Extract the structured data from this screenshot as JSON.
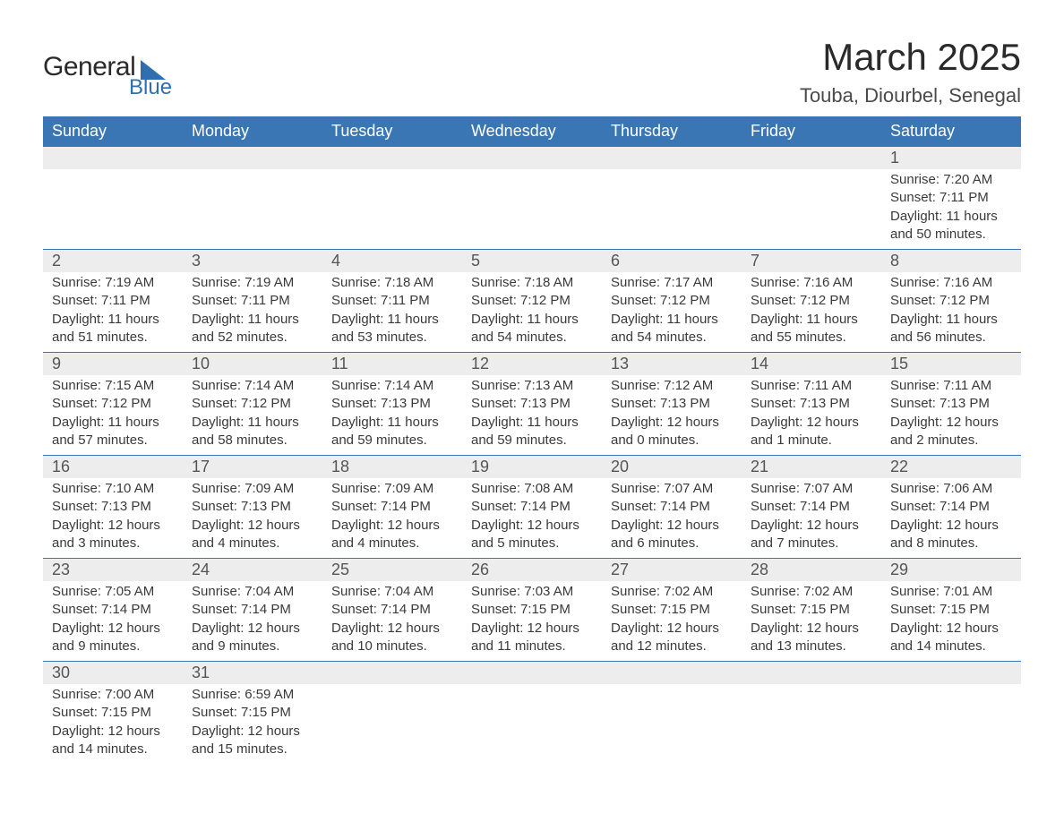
{
  "logo": {
    "top": "General",
    "bottom": "Blue"
  },
  "title": "March 2025",
  "location": "Touba, Diourbel, Senegal",
  "colors": {
    "header_bg": "#3a76b4",
    "header_text": "#ffffff",
    "daynum_bg": "#ededed",
    "row_divider": "#3a76b4",
    "text": "#3a3a3a",
    "logo_accent": "#2f6fb0"
  },
  "weekdays": [
    "Sunday",
    "Monday",
    "Tuesday",
    "Wednesday",
    "Thursday",
    "Friday",
    "Saturday"
  ],
  "weeks": [
    [
      null,
      null,
      null,
      null,
      null,
      null,
      {
        "d": "1",
        "sr": "Sunrise: 7:20 AM",
        "ss": "Sunset: 7:11 PM",
        "dl1": "Daylight: 11 hours",
        "dl2": "and 50 minutes."
      }
    ],
    [
      {
        "d": "2",
        "sr": "Sunrise: 7:19 AM",
        "ss": "Sunset: 7:11 PM",
        "dl1": "Daylight: 11 hours",
        "dl2": "and 51 minutes."
      },
      {
        "d": "3",
        "sr": "Sunrise: 7:19 AM",
        "ss": "Sunset: 7:11 PM",
        "dl1": "Daylight: 11 hours",
        "dl2": "and 52 minutes."
      },
      {
        "d": "4",
        "sr": "Sunrise: 7:18 AM",
        "ss": "Sunset: 7:11 PM",
        "dl1": "Daylight: 11 hours",
        "dl2": "and 53 minutes."
      },
      {
        "d": "5",
        "sr": "Sunrise: 7:18 AM",
        "ss": "Sunset: 7:12 PM",
        "dl1": "Daylight: 11 hours",
        "dl2": "and 54 minutes."
      },
      {
        "d": "6",
        "sr": "Sunrise: 7:17 AM",
        "ss": "Sunset: 7:12 PM",
        "dl1": "Daylight: 11 hours",
        "dl2": "and 54 minutes."
      },
      {
        "d": "7",
        "sr": "Sunrise: 7:16 AM",
        "ss": "Sunset: 7:12 PM",
        "dl1": "Daylight: 11 hours",
        "dl2": "and 55 minutes."
      },
      {
        "d": "8",
        "sr": "Sunrise: 7:16 AM",
        "ss": "Sunset: 7:12 PM",
        "dl1": "Daylight: 11 hours",
        "dl2": "and 56 minutes."
      }
    ],
    [
      {
        "d": "9",
        "sr": "Sunrise: 7:15 AM",
        "ss": "Sunset: 7:12 PM",
        "dl1": "Daylight: 11 hours",
        "dl2": "and 57 minutes."
      },
      {
        "d": "10",
        "sr": "Sunrise: 7:14 AM",
        "ss": "Sunset: 7:12 PM",
        "dl1": "Daylight: 11 hours",
        "dl2": "and 58 minutes."
      },
      {
        "d": "11",
        "sr": "Sunrise: 7:14 AM",
        "ss": "Sunset: 7:13 PM",
        "dl1": "Daylight: 11 hours",
        "dl2": "and 59 minutes."
      },
      {
        "d": "12",
        "sr": "Sunrise: 7:13 AM",
        "ss": "Sunset: 7:13 PM",
        "dl1": "Daylight: 11 hours",
        "dl2": "and 59 minutes."
      },
      {
        "d": "13",
        "sr": "Sunrise: 7:12 AM",
        "ss": "Sunset: 7:13 PM",
        "dl1": "Daylight: 12 hours",
        "dl2": "and 0 minutes."
      },
      {
        "d": "14",
        "sr": "Sunrise: 7:11 AM",
        "ss": "Sunset: 7:13 PM",
        "dl1": "Daylight: 12 hours",
        "dl2": "and 1 minute."
      },
      {
        "d": "15",
        "sr": "Sunrise: 7:11 AM",
        "ss": "Sunset: 7:13 PM",
        "dl1": "Daylight: 12 hours",
        "dl2": "and 2 minutes."
      }
    ],
    [
      {
        "d": "16",
        "sr": "Sunrise: 7:10 AM",
        "ss": "Sunset: 7:13 PM",
        "dl1": "Daylight: 12 hours",
        "dl2": "and 3 minutes."
      },
      {
        "d": "17",
        "sr": "Sunrise: 7:09 AM",
        "ss": "Sunset: 7:13 PM",
        "dl1": "Daylight: 12 hours",
        "dl2": "and 4 minutes."
      },
      {
        "d": "18",
        "sr": "Sunrise: 7:09 AM",
        "ss": "Sunset: 7:14 PM",
        "dl1": "Daylight: 12 hours",
        "dl2": "and 4 minutes."
      },
      {
        "d": "19",
        "sr": "Sunrise: 7:08 AM",
        "ss": "Sunset: 7:14 PM",
        "dl1": "Daylight: 12 hours",
        "dl2": "and 5 minutes."
      },
      {
        "d": "20",
        "sr": "Sunrise: 7:07 AM",
        "ss": "Sunset: 7:14 PM",
        "dl1": "Daylight: 12 hours",
        "dl2": "and 6 minutes."
      },
      {
        "d": "21",
        "sr": "Sunrise: 7:07 AM",
        "ss": "Sunset: 7:14 PM",
        "dl1": "Daylight: 12 hours",
        "dl2": "and 7 minutes."
      },
      {
        "d": "22",
        "sr": "Sunrise: 7:06 AM",
        "ss": "Sunset: 7:14 PM",
        "dl1": "Daylight: 12 hours",
        "dl2": "and 8 minutes."
      }
    ],
    [
      {
        "d": "23",
        "sr": "Sunrise: 7:05 AM",
        "ss": "Sunset: 7:14 PM",
        "dl1": "Daylight: 12 hours",
        "dl2": "and 9 minutes."
      },
      {
        "d": "24",
        "sr": "Sunrise: 7:04 AM",
        "ss": "Sunset: 7:14 PM",
        "dl1": "Daylight: 12 hours",
        "dl2": "and 9 minutes."
      },
      {
        "d": "25",
        "sr": "Sunrise: 7:04 AM",
        "ss": "Sunset: 7:14 PM",
        "dl1": "Daylight: 12 hours",
        "dl2": "and 10 minutes."
      },
      {
        "d": "26",
        "sr": "Sunrise: 7:03 AM",
        "ss": "Sunset: 7:15 PM",
        "dl1": "Daylight: 12 hours",
        "dl2": "and 11 minutes."
      },
      {
        "d": "27",
        "sr": "Sunrise: 7:02 AM",
        "ss": "Sunset: 7:15 PM",
        "dl1": "Daylight: 12 hours",
        "dl2": "and 12 minutes."
      },
      {
        "d": "28",
        "sr": "Sunrise: 7:02 AM",
        "ss": "Sunset: 7:15 PM",
        "dl1": "Daylight: 12 hours",
        "dl2": "and 13 minutes."
      },
      {
        "d": "29",
        "sr": "Sunrise: 7:01 AM",
        "ss": "Sunset: 7:15 PM",
        "dl1": "Daylight: 12 hours",
        "dl2": "and 14 minutes."
      }
    ],
    [
      {
        "d": "30",
        "sr": "Sunrise: 7:00 AM",
        "ss": "Sunset: 7:15 PM",
        "dl1": "Daylight: 12 hours",
        "dl2": "and 14 minutes."
      },
      {
        "d": "31",
        "sr": "Sunrise: 6:59 AM",
        "ss": "Sunset: 7:15 PM",
        "dl1": "Daylight: 12 hours",
        "dl2": "and 15 minutes."
      },
      null,
      null,
      null,
      null,
      null
    ]
  ]
}
